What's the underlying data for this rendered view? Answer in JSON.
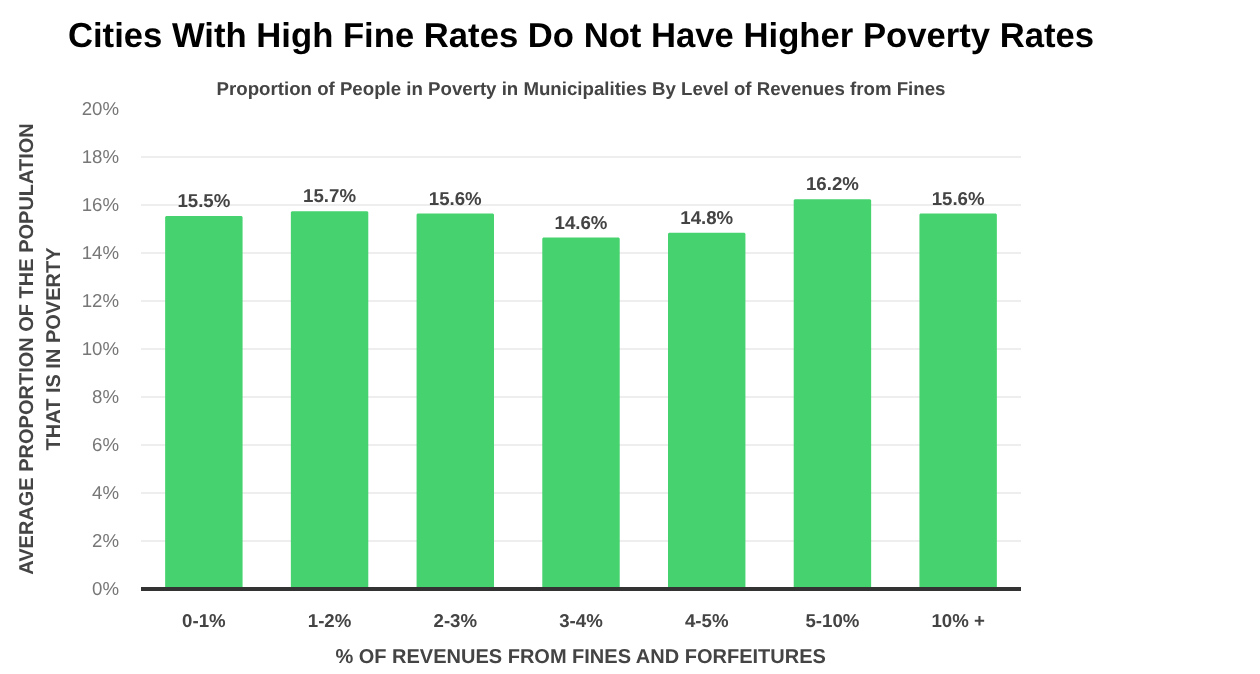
{
  "chart_data": {
    "type": "bar",
    "title": "Cities With High Fine Rates Do Not Have Higher Poverty Rates",
    "subtitle": "Proportion of People in Poverty in Municipalities By Level of Revenues from Fines",
    "xlabel": "% OF REVENUES FROM FINES AND FORFEITURES",
    "ylabel": "AVERAGE PROPORTION OF THE POPULATION\nTHAT IS IN POVERTY",
    "categories": [
      "0-1%",
      "1-2%",
      "2-3%",
      "3-4%",
      "4-5%",
      "5-10%",
      "10% +"
    ],
    "values": [
      15.5,
      15.7,
      15.6,
      14.6,
      14.8,
      16.2,
      15.6
    ],
    "color": "#46d36f",
    "value_labels": [
      "15.5%",
      "15.7%",
      "15.6%",
      "14.6%",
      "14.8%",
      "16.2%",
      "15.6%"
    ],
    "ylim": [
      0,
      20
    ],
    "yticks": [
      {
        "value": 0,
        "label": "0%"
      },
      {
        "value": 2,
        "label": "2%"
      },
      {
        "value": 4,
        "label": "4%"
      },
      {
        "value": 6,
        "label": "6%"
      },
      {
        "value": 8,
        "label": "8%"
      },
      {
        "value": 10,
        "label": "10%"
      },
      {
        "value": 12,
        "label": "12%"
      },
      {
        "value": 14,
        "label": "14%"
      },
      {
        "value": 16,
        "label": "16%"
      },
      {
        "value": 18,
        "label": "18%"
      },
      {
        "value": 20,
        "label": "20%"
      }
    ],
    "grid": "y"
  }
}
